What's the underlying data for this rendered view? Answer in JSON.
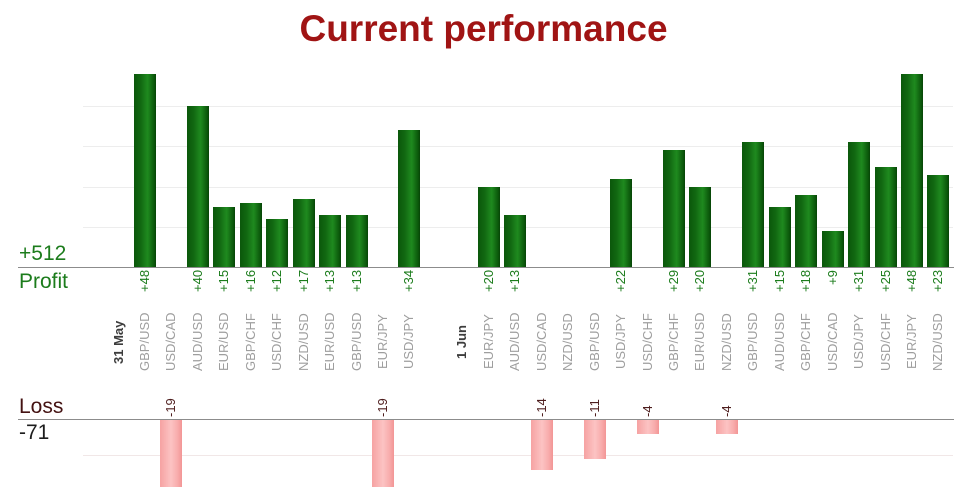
{
  "title": "Current performance",
  "profit_section": {
    "total_label": "+512",
    "axis_label": "Profit"
  },
  "loss_section": {
    "axis_label": "Loss",
    "total_label": "-71"
  },
  "chart_data": {
    "type": "bar",
    "title": "Current performance",
    "orientation": "vertical",
    "groups": [
      "31 May",
      "1 Jun"
    ],
    "profit_total": 512,
    "loss_total": -71,
    "profit_axis_range": [
      0,
      50
    ],
    "profit_gridline_step": 10,
    "loss_axis_range": [
      0,
      -20
    ],
    "loss_gridline_step": 10,
    "colors": {
      "profit_bar": "#0e6b0e",
      "loss_bar": "#f9b0b0",
      "profit_text": "#1c7c1c",
      "loss_text": "#4e1e1e",
      "pair_text": "#9e9e9e",
      "title_text": "#a01414",
      "axis_line": "#8c8c8c"
    },
    "slots": [
      {
        "kind": "date",
        "label": "31 May"
      },
      {
        "kind": "profit",
        "label": "GBP/USD",
        "value": 48,
        "value_label": "+48"
      },
      {
        "kind": "loss",
        "label": "USD/CAD",
        "value": -19,
        "value_label": "-19"
      },
      {
        "kind": "profit",
        "label": "AUD/USD",
        "value": 40,
        "value_label": "+40"
      },
      {
        "kind": "profit",
        "label": "EUR/USD",
        "value": 15,
        "value_label": "+15"
      },
      {
        "kind": "profit",
        "label": "GBP/CHF",
        "value": 16,
        "value_label": "+16"
      },
      {
        "kind": "profit",
        "label": "USD/CHF",
        "value": 12,
        "value_label": "+12"
      },
      {
        "kind": "profit",
        "label": "NZD/USD",
        "value": 17,
        "value_label": "+17"
      },
      {
        "kind": "profit",
        "label": "EUR/USD",
        "value": 13,
        "value_label": "+13"
      },
      {
        "kind": "profit",
        "label": "GBP/USD",
        "value": 13,
        "value_label": "+13"
      },
      {
        "kind": "loss",
        "label": "EUR/JPY",
        "value": -19,
        "value_label": "-19"
      },
      {
        "kind": "profit",
        "label": "USD/JPY",
        "value": 34,
        "value_label": "+34"
      },
      {
        "kind": "spacer",
        "label": ""
      },
      {
        "kind": "date",
        "label": "1 Jun"
      },
      {
        "kind": "profit",
        "label": "EUR/JPY",
        "value": 20,
        "value_label": "+20"
      },
      {
        "kind": "profit",
        "label": "AUD/USD",
        "value": 13,
        "value_label": "+13"
      },
      {
        "kind": "loss",
        "label": "USD/CAD",
        "value": -14,
        "value_label": "-14"
      },
      {
        "kind": "empty",
        "label": "NZD/USD"
      },
      {
        "kind": "loss",
        "label": "GBP/USD",
        "value": -11,
        "value_label": "-11"
      },
      {
        "kind": "profit",
        "label": "USD/JPY",
        "value": 22,
        "value_label": "+22"
      },
      {
        "kind": "loss",
        "label": "USD/CHF",
        "value": -4,
        "value_label": "-4"
      },
      {
        "kind": "profit",
        "label": "GBP/CHF",
        "value": 29,
        "value_label": "+29"
      },
      {
        "kind": "profit",
        "label": "EUR/USD",
        "value": 20,
        "value_label": "+20"
      },
      {
        "kind": "loss",
        "label": "NZD/USD",
        "value": -4,
        "value_label": "-4"
      },
      {
        "kind": "profit",
        "label": "GBP/USD",
        "value": 31,
        "value_label": "+31"
      },
      {
        "kind": "profit",
        "label": "AUD/USD",
        "value": 15,
        "value_label": "+15"
      },
      {
        "kind": "profit",
        "label": "GBP/CHF",
        "value": 18,
        "value_label": "+18"
      },
      {
        "kind": "profit",
        "label": "USD/CAD",
        "value": 9,
        "value_label": "+9"
      },
      {
        "kind": "profit",
        "label": "USD/JPY",
        "value": 31,
        "value_label": "+31"
      },
      {
        "kind": "profit",
        "label": "USD/CHF",
        "value": 25,
        "value_label": "+25"
      },
      {
        "kind": "profit",
        "label": "EUR/JPY",
        "value": 48,
        "value_label": "+48"
      },
      {
        "kind": "profit",
        "label": "NZD/USD",
        "value": 23,
        "value_label": "+23"
      }
    ]
  }
}
